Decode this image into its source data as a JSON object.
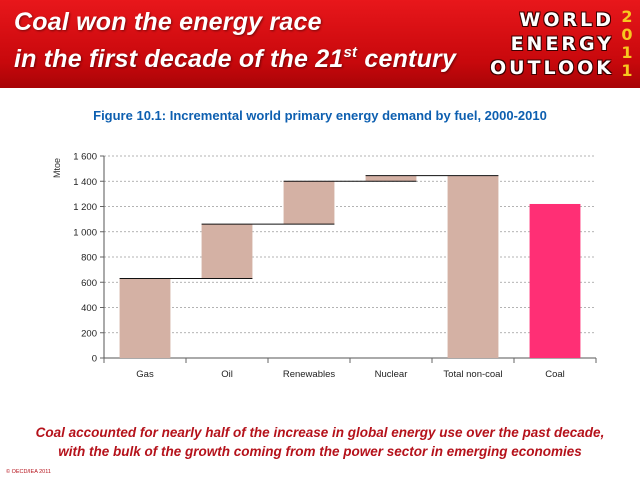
{
  "header": {
    "title_line1": "Coal won the energy race",
    "title_line2_prefix": "in the first decade of the 21",
    "title_line2_sup": "st",
    "title_line2_suffix": " century",
    "logo_line1": "WORLD",
    "logo_line2": "ENERGY",
    "logo_line3": "OUTLOOK",
    "logo_year": [
      "2",
      "0",
      "1",
      "1"
    ]
  },
  "figure_title": "Figure 10.1: Incremental world primary energy demand by fuel, 2000-2010",
  "caption_line1": "Coal accounted for nearly half of the increase in global energy use over the past decade,",
  "caption_line2": "with the bulk of the growth coming from the power sector in emerging economies",
  "footer": "© OECD/IEA 2011",
  "colors": {
    "header": "#d7100f",
    "bar": "#d4b1a4",
    "coal": "#ff2f75",
    "title": "#0d5fb0",
    "caption": "#b5121b"
  },
  "chart_data": {
    "type": "bar",
    "subtype": "waterfall",
    "title": "",
    "ylabel": "Mtoe",
    "xlabel": "",
    "ylim": [
      0,
      1600
    ],
    "yticks": [
      0,
      200,
      400,
      600,
      800,
      1000,
      1200,
      1400,
      1600
    ],
    "ytick_labels": [
      "0",
      "200",
      "400",
      "600",
      "800",
      "1 000",
      "1 200",
      "1 400",
      "1 600"
    ],
    "grid": true,
    "categories": [
      "Gas",
      "Oil",
      "Renewables",
      "Nuclear",
      "Total non-coal",
      "Coal"
    ],
    "bars": [
      {
        "category": "Gas",
        "base": 0,
        "value": 630
      },
      {
        "category": "Oil",
        "base": 630,
        "value": 430
      },
      {
        "category": "Renewables",
        "base": 1060,
        "value": 340
      },
      {
        "category": "Nuclear",
        "base": 1400,
        "value": 45
      },
      {
        "category": "Total non-coal",
        "base": 0,
        "value": 1445
      },
      {
        "category": "Coal",
        "base": 0,
        "value": 1220
      }
    ]
  }
}
